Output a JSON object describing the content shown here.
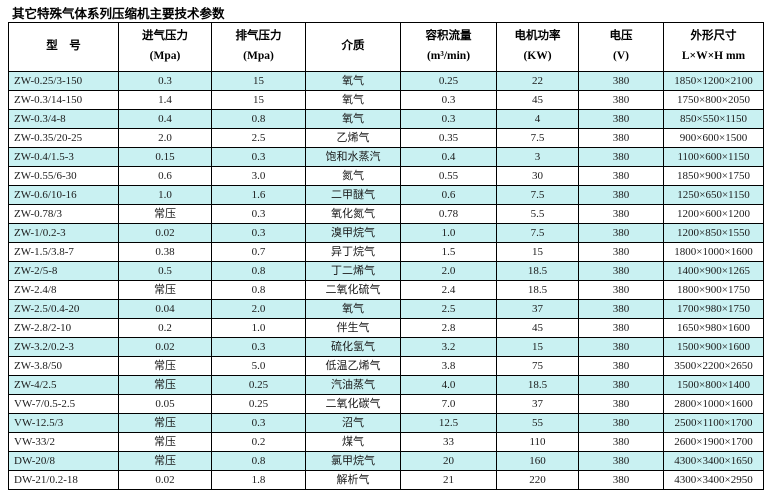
{
  "title": "其它特殊气体系列压缩机主要技术参数",
  "colors": {
    "row_stripe": "#c9f1f2",
    "table_border": "#000000",
    "text": "#1a1a1a"
  },
  "table": {
    "column_keys": [
      "model",
      "inlet-pressure",
      "outlet-pressure",
      "medium",
      "volume-flow",
      "motor-power",
      "voltage",
      "dimensions"
    ],
    "headers": [
      {
        "line1": "型　号",
        "line2": ""
      },
      {
        "line1": "进气压力",
        "line2": "(Mpa)"
      },
      {
        "line1": "排气压力",
        "line2": "(Mpa)"
      },
      {
        "line1": "介质",
        "line2": ""
      },
      {
        "line1": "容积流量",
        "line2": "(m³/min)"
      },
      {
        "line1": "电机功率",
        "line2": "(KW)"
      },
      {
        "line1": "电压",
        "line2": "(V)"
      },
      {
        "line1": "外形尺寸",
        "line2": "L×W×H mm"
      }
    ],
    "rows": [
      [
        "ZW-0.25/3-150",
        "0.3",
        "15",
        "氧气",
        "0.25",
        "22",
        "380",
        "1850×1200×2100"
      ],
      [
        "ZW-0.3/14-150",
        "1.4",
        "15",
        "氧气",
        "0.3",
        "45",
        "380",
        "1750×800×2050"
      ],
      [
        "ZW-0.3/4-8",
        "0.4",
        "0.8",
        "氧气",
        "0.3",
        "4",
        "380",
        "850×550×1150"
      ],
      [
        "ZW-0.35/20-25",
        "2.0",
        "2.5",
        "乙烯气",
        "0.35",
        "7.5",
        "380",
        "900×600×1500"
      ],
      [
        "ZW-0.4/1.5-3",
        "0.15",
        "0.3",
        "饱和水蒸汽",
        "0.4",
        "3",
        "380",
        "1100×600×1150"
      ],
      [
        "ZW-0.55/6-30",
        "0.6",
        "3.0",
        "氮气",
        "0.55",
        "30",
        "380",
        "1850×900×1750"
      ],
      [
        "ZW-0.6/10-16",
        "1.0",
        "1.6",
        "二甲醚气",
        "0.6",
        "7.5",
        "380",
        "1250×650×1150"
      ],
      [
        "ZW-0.78/3",
        "常压",
        "0.3",
        "氧化氮气",
        "0.78",
        "5.5",
        "380",
        "1200×600×1200"
      ],
      [
        "ZW-1/0.2-3",
        "0.02",
        "0.3",
        "溴甲烷气",
        "1.0",
        "7.5",
        "380",
        "1200×850×1550"
      ],
      [
        "ZW-1.5/3.8-7",
        "0.38",
        "0.7",
        "异丁烷气",
        "1.5",
        "15",
        "380",
        "1800×1000×1600"
      ],
      [
        "ZW-2/5-8",
        "0.5",
        "0.8",
        "丁二烯气",
        "2.0",
        "18.5",
        "380",
        "1400×900×1265"
      ],
      [
        "ZW-2.4/8",
        "常压",
        "0.8",
        "二氧化硫气",
        "2.4",
        "18.5",
        "380",
        "1800×900×1750"
      ],
      [
        "ZW-2.5/0.4-20",
        "0.04",
        "2.0",
        "氧气",
        "2.5",
        "37",
        "380",
        "1700×980×1750"
      ],
      [
        "ZW-2.8/2-10",
        "0.2",
        "1.0",
        "伴生气",
        "2.8",
        "45",
        "380",
        "1650×980×1600"
      ],
      [
        "ZW-3.2/0.2-3",
        "0.02",
        "0.3",
        "硫化氢气",
        "3.2",
        "15",
        "380",
        "1500×900×1600"
      ],
      [
        "ZW-3.8/50",
        "常压",
        "5.0",
        "低温乙烯气",
        "3.8",
        "75",
        "380",
        "3500×2200×2650"
      ],
      [
        "ZW-4/2.5",
        "常压",
        "0.25",
        "汽油蒸气",
        "4.0",
        "18.5",
        "380",
        "1500×800×1400"
      ],
      [
        "VW-7/0.5-2.5",
        "0.05",
        "0.25",
        "二氧化碳气",
        "7.0",
        "37",
        "380",
        "2800×1000×1600"
      ],
      [
        "VW-12.5/3",
        "常压",
        "0.3",
        "沼气",
        "12.5",
        "55",
        "380",
        "2500×1100×1700"
      ],
      [
        "VW-33/2",
        "常压",
        "0.2",
        "煤气",
        "33",
        "110",
        "380",
        "2600×1900×1700"
      ],
      [
        "DW-20/8",
        "常压",
        "0.8",
        "氯甲烷气",
        "20",
        "160",
        "380",
        "4300×3400×1650"
      ],
      [
        "DW-21/0.2-18",
        "0.02",
        "1.8",
        "解析气",
        "21",
        "220",
        "380",
        "4300×3400×2950"
      ]
    ]
  }
}
